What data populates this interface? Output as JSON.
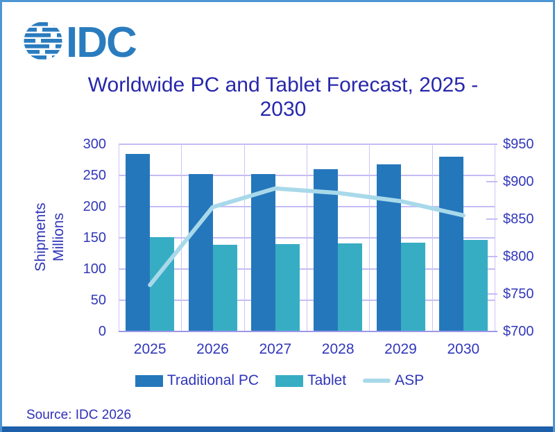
{
  "logo": {
    "text": "IDC"
  },
  "title": {
    "line1": "Worldwide PC and Tablet Forecast, 2025 -",
    "line2": "2030"
  },
  "source": "Source: IDC 2026",
  "colors": {
    "traditional_pc": "#2577BC",
    "tablet": "#37ADC4",
    "asp_line": "#A8D9EA",
    "gridline": "#C4BCF4",
    "axis_line": "#9D97E6",
    "text_navy": "#3137BB",
    "title_navy": "#2727AC",
    "logo_blue": "#2A7CBF",
    "frame_border": "#4E95D4",
    "bottom_strip": "#1D5FA9"
  },
  "chart_data": {
    "type": "bar",
    "subtype": "grouped bars with line on secondary axis",
    "title": "Worldwide PC and Tablet Forecast, 2025 - 2030",
    "categories": [
      "2025",
      "2026",
      "2027",
      "2028",
      "2029",
      "2030"
    ],
    "series": [
      {
        "name": "Traditional PC",
        "type": "bar",
        "axis": "left",
        "color": "#2577BC",
        "values": [
          285,
          252,
          252,
          260,
          268,
          280
        ]
      },
      {
        "name": "Tablet",
        "type": "bar",
        "axis": "left",
        "color": "#37ADC4",
        "values": [
          151,
          139,
          140,
          141,
          142,
          147
        ]
      },
      {
        "name": "ASP",
        "type": "line",
        "axis": "right",
        "color": "#A8D9EA",
        "values": [
          762,
          866,
          891,
          885,
          874,
          855
        ]
      }
    ],
    "left_axis": {
      "title_lines": [
        "Shipments",
        "Millions"
      ],
      "min": 0,
      "max": 300,
      "step": 50,
      "tick_labels": [
        "300",
        "250",
        "200",
        "150",
        "100",
        "50",
        "0"
      ]
    },
    "right_axis": {
      "min": 700,
      "max": 950,
      "step": 50,
      "tick_labels": [
        "$950",
        "$900",
        "$850",
        "$800",
        "$750",
        "$700"
      ]
    },
    "legend_position": "bottom",
    "grid": true
  }
}
